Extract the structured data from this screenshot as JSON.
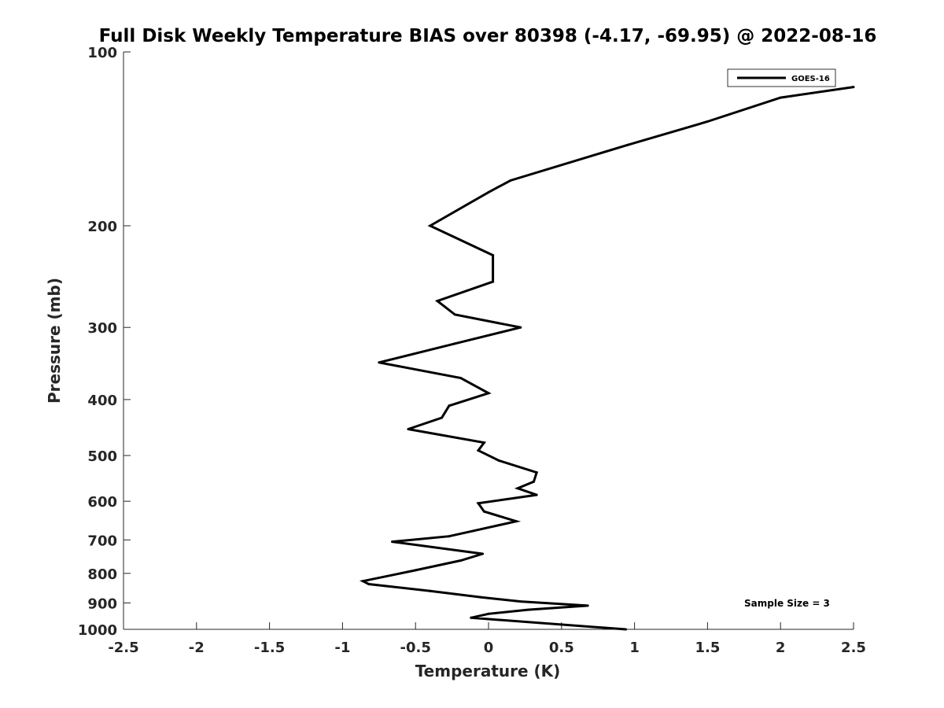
{
  "chart_data": {
    "type": "line",
    "title": "Full Disk Weekly Temperature BIAS over 80398 (-4.17, -69.95) @ 2022-08-16",
    "xlabel": "Temperature (K)",
    "ylabel": "Pressure (mb)",
    "xlim": [
      -2.5,
      2.5
    ],
    "ylim": [
      100,
      1000
    ],
    "yscale": "log",
    "grid": false,
    "legend_position": "top-right",
    "x_ticks": [
      -2.5,
      -2,
      -1.5,
      -1,
      -0.5,
      0,
      0.5,
      1,
      1.5,
      2,
      2.5
    ],
    "x_tick_labels": [
      "-2.5",
      "-2",
      "-1.5",
      "-1",
      "-0.5",
      "0",
      "0.5",
      "1",
      "1.5",
      "2",
      "2.5"
    ],
    "y_ticks": [
      100,
      200,
      300,
      400,
      500,
      600,
      700,
      800,
      900,
      1000
    ],
    "y_tick_labels": [
      "100",
      "200",
      "300",
      "400",
      "500",
      "600",
      "700",
      "800",
      "900",
      "1000"
    ],
    "annotation": "Sample Size = 3",
    "series": [
      {
        "name": "GOES-16",
        "color": "#000000",
        "points": [
          {
            "x": 2.5,
            "p": 115
          },
          {
            "x": 2.0,
            "p": 120
          },
          {
            "x": 1.5,
            "p": 132
          },
          {
            "x": 0.95,
            "p": 145
          },
          {
            "x": 0.15,
            "p": 167
          },
          {
            "x": 0.0,
            "p": 175
          },
          {
            "x": -0.4,
            "p": 200
          },
          {
            "x": 0.03,
            "p": 225
          },
          {
            "x": 0.03,
            "p": 250
          },
          {
            "x": -0.35,
            "p": 270
          },
          {
            "x": -0.23,
            "p": 285
          },
          {
            "x": 0.22,
            "p": 300
          },
          {
            "x": -0.23,
            "p": 320
          },
          {
            "x": -0.75,
            "p": 345
          },
          {
            "x": -0.19,
            "p": 367
          },
          {
            "x": 0.0,
            "p": 390
          },
          {
            "x": -0.27,
            "p": 410
          },
          {
            "x": -0.32,
            "p": 430
          },
          {
            "x": -0.55,
            "p": 450
          },
          {
            "x": -0.03,
            "p": 475
          },
          {
            "x": -0.07,
            "p": 490
          },
          {
            "x": 0.07,
            "p": 510
          },
          {
            "x": 0.33,
            "p": 535
          },
          {
            "x": 0.31,
            "p": 555
          },
          {
            "x": 0.2,
            "p": 570
          },
          {
            "x": 0.33,
            "p": 585
          },
          {
            "x": -0.07,
            "p": 605
          },
          {
            "x": -0.03,
            "p": 625
          },
          {
            "x": 0.19,
            "p": 650
          },
          {
            "x": -0.1,
            "p": 675
          },
          {
            "x": -0.27,
            "p": 690
          },
          {
            "x": -0.66,
            "p": 705
          },
          {
            "x": -0.04,
            "p": 740
          },
          {
            "x": -0.19,
            "p": 760
          },
          {
            "x": -0.5,
            "p": 790
          },
          {
            "x": -0.86,
            "p": 825
          },
          {
            "x": -0.82,
            "p": 835
          },
          {
            "x": -0.4,
            "p": 858
          },
          {
            "x": -0.05,
            "p": 880
          },
          {
            "x": 0.22,
            "p": 895
          },
          {
            "x": 0.68,
            "p": 910
          },
          {
            "x": 0.27,
            "p": 925
          },
          {
            "x": 0.0,
            "p": 940
          },
          {
            "x": -0.12,
            "p": 955
          },
          {
            "x": 0.94,
            "p": 1000
          }
        ]
      }
    ]
  }
}
